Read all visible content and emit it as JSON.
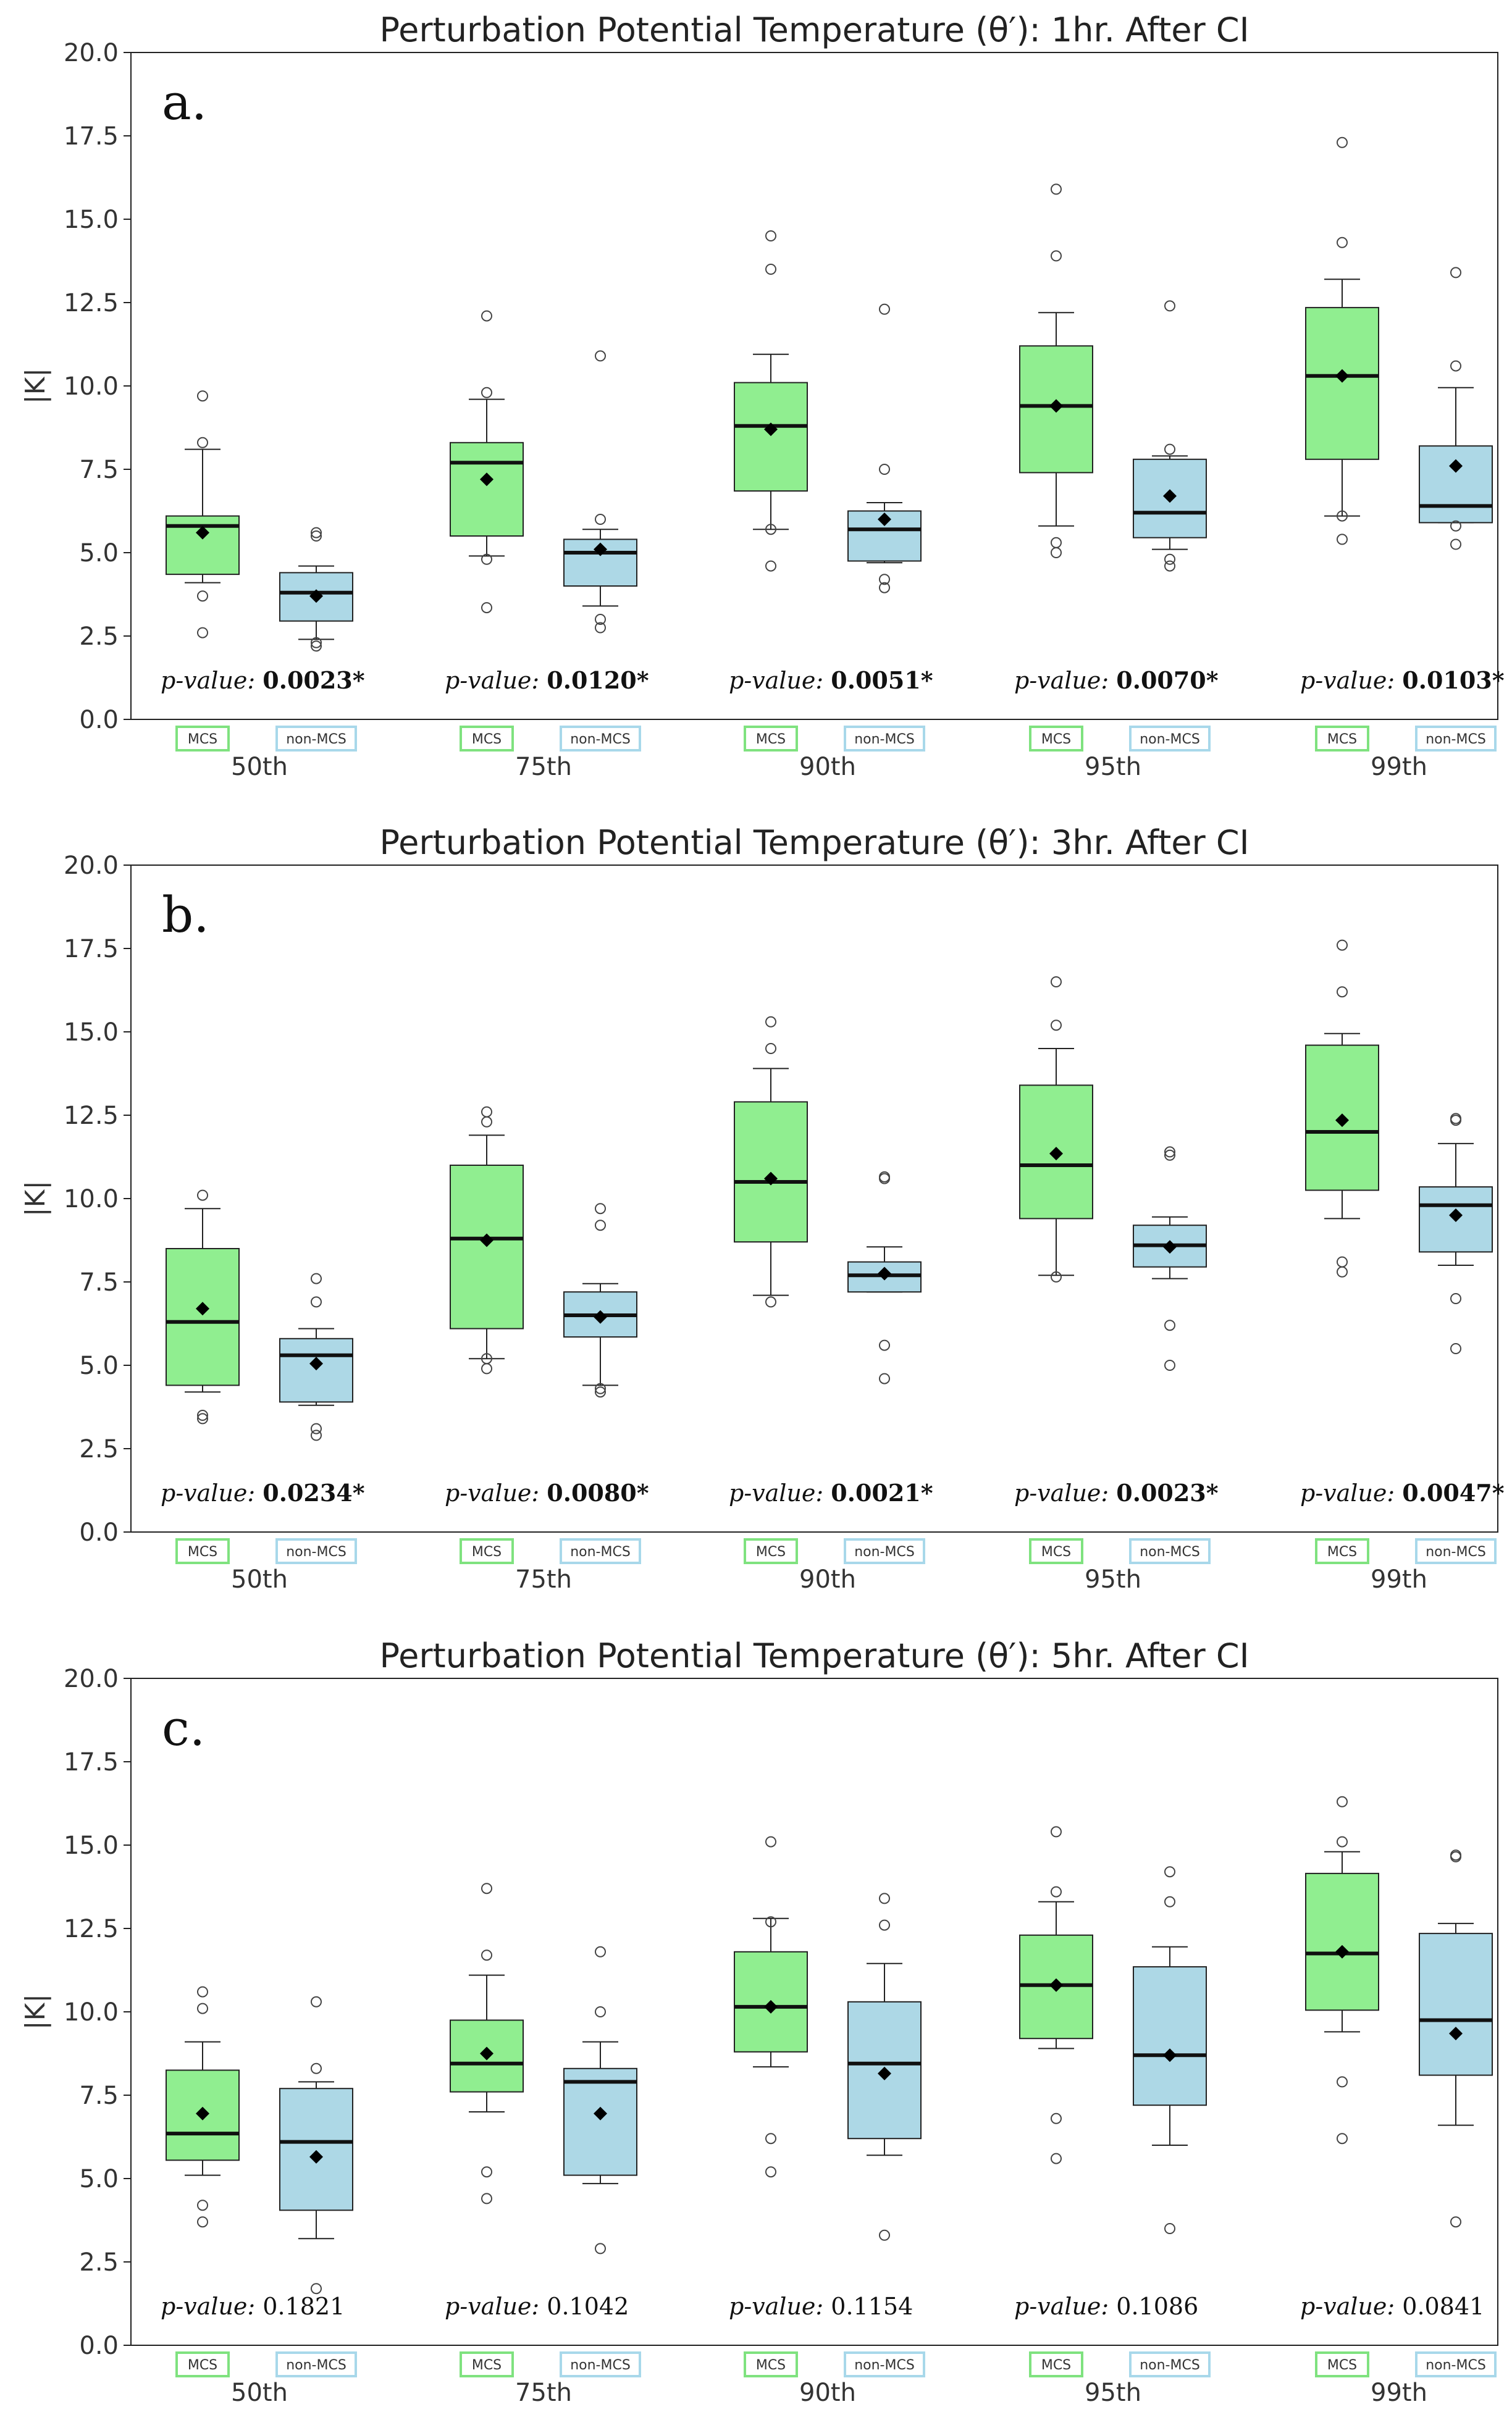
{
  "colors": {
    "mcs_fill": "#90ee90",
    "non_mcs_fill": "#add8e6",
    "mcs_legend": "#7fe27f",
    "non_mcs_legend": "#a8d8ea",
    "line": "#222222",
    "median": "#111111"
  },
  "legend_labels": {
    "mcs": "MCS",
    "non_mcs": "non-MCS"
  },
  "p_value_label": "p-value:",
  "chart_data": [
    {
      "type": "box",
      "panel_label": "a.",
      "title": "Perturbation Potential Temperature (θ′): 1hr. After CI",
      "ylabel": "|K|",
      "ylim": [
        0,
        20
      ],
      "yticks": [
        "0.0",
        "2.5",
        "5.0",
        "7.5",
        "10.0",
        "12.5",
        "15.0",
        "17.5",
        "20.0"
      ],
      "categories": [
        "50th",
        "75th",
        "90th",
        "95th",
        "99th"
      ],
      "p_values": [
        "0.0023*",
        "0.0120*",
        "0.0051*",
        "0.0070*",
        "0.0103*"
      ],
      "p_significant": [
        true,
        true,
        true,
        true,
        true
      ],
      "series": [
        {
          "name": "MCS",
          "boxes": [
            {
              "wl": 4.1,
              "q1": 4.35,
              "med": 5.8,
              "q3": 6.1,
              "wh": 8.1,
              "mean": 5.6,
              "fliers": [
                9.7,
                8.3,
                3.7,
                2.6
              ]
            },
            {
              "wl": 4.9,
              "q1": 5.5,
              "med": 7.7,
              "q3": 8.3,
              "wh": 9.6,
              "mean": 7.2,
              "fliers": [
                12.1,
                9.8,
                4.8,
                3.35
              ]
            },
            {
              "wl": 5.7,
              "q1": 6.85,
              "med": 8.8,
              "q3": 10.1,
              "wh": 10.95,
              "mean": 8.7,
              "fliers": [
                14.5,
                13.5,
                5.7,
                4.6
              ]
            },
            {
              "wl": 5.8,
              "q1": 7.4,
              "med": 9.4,
              "q3": 11.2,
              "wh": 12.2,
              "mean": 9.4,
              "fliers": [
                15.9,
                13.9,
                5.3,
                5.0
              ]
            },
            {
              "wl": 6.1,
              "q1": 7.8,
              "med": 10.3,
              "q3": 12.35,
              "wh": 13.2,
              "mean": 10.3,
              "fliers": [
                17.3,
                14.3,
                6.1,
                5.4
              ]
            }
          ]
        },
        {
          "name": "non-MCS",
          "boxes": [
            {
              "wl": 2.4,
              "q1": 2.95,
              "med": 3.8,
              "q3": 4.4,
              "wh": 4.6,
              "mean": 3.7,
              "fliers": [
                5.6,
                5.5,
                2.3,
                2.2
              ]
            },
            {
              "wl": 3.4,
              "q1": 4.0,
              "med": 5.0,
              "q3": 5.4,
              "wh": 5.7,
              "mean": 5.1,
              "fliers": [
                10.9,
                6.0,
                3.0,
                2.75
              ]
            },
            {
              "wl": 4.7,
              "q1": 4.75,
              "med": 5.7,
              "q3": 6.25,
              "wh": 6.5,
              "mean": 6.0,
              "fliers": [
                12.3,
                7.5,
                4.2,
                3.95
              ]
            },
            {
              "wl": 5.1,
              "q1": 5.45,
              "med": 6.2,
              "q3": 7.8,
              "wh": 7.9,
              "mean": 6.7,
              "fliers": [
                12.4,
                8.1,
                4.8,
                4.6
              ]
            },
            {
              "wl": 5.9,
              "q1": 5.9,
              "med": 6.4,
              "q3": 8.2,
              "wh": 9.95,
              "mean": 7.6,
              "fliers": [
                13.4,
                10.6,
                5.8,
                5.25
              ]
            }
          ]
        }
      ]
    },
    {
      "type": "box",
      "panel_label": "b.",
      "title": "Perturbation Potential Temperature (θ′): 3hr. After CI",
      "ylabel": "|K|",
      "ylim": [
        0,
        20
      ],
      "yticks": [
        "0.0",
        "2.5",
        "5.0",
        "7.5",
        "10.0",
        "12.5",
        "15.0",
        "17.5",
        "20.0"
      ],
      "categories": [
        "50th",
        "75th",
        "90th",
        "95th",
        "99th"
      ],
      "p_values": [
        "0.0234*",
        "0.0080*",
        "0.0021*",
        "0.0023*",
        "0.0047*"
      ],
      "p_significant": [
        true,
        true,
        true,
        true,
        true
      ],
      "series": [
        {
          "name": "MCS",
          "boxes": [
            {
              "wl": 4.2,
              "q1": 4.4,
              "med": 6.3,
              "q3": 8.5,
              "wh": 9.7,
              "mean": 6.7,
              "fliers": [
                10.1,
                3.5,
                3.4
              ]
            },
            {
              "wl": 5.2,
              "q1": 6.1,
              "med": 8.8,
              "q3": 11.0,
              "wh": 11.9,
              "mean": 8.75,
              "fliers": [
                12.6,
                12.3,
                5.2,
                4.9
              ]
            },
            {
              "wl": 7.1,
              "q1": 8.7,
              "med": 10.5,
              "q3": 12.9,
              "wh": 13.9,
              "mean": 10.6,
              "fliers": [
                15.3,
                14.5,
                6.9
              ]
            },
            {
              "wl": 7.7,
              "q1": 9.4,
              "med": 11.0,
              "q3": 13.4,
              "wh": 14.5,
              "mean": 11.35,
              "fliers": [
                16.5,
                15.2,
                7.65
              ]
            },
            {
              "wl": 9.4,
              "q1": 10.25,
              "med": 12.0,
              "q3": 14.6,
              "wh": 14.95,
              "mean": 12.35,
              "fliers": [
                17.6,
                16.2,
                8.1,
                7.8
              ]
            }
          ]
        },
        {
          "name": "non-MCS",
          "boxes": [
            {
              "wl": 3.8,
              "q1": 3.9,
              "med": 5.3,
              "q3": 5.8,
              "wh": 6.1,
              "mean": 5.05,
              "fliers": [
                7.6,
                6.9,
                3.1,
                2.9
              ]
            },
            {
              "wl": 4.4,
              "q1": 5.85,
              "med": 6.5,
              "q3": 7.2,
              "wh": 7.45,
              "mean": 6.45,
              "fliers": [
                9.7,
                9.2,
                4.3,
                4.2
              ]
            },
            {
              "wl": 7.2,
              "q1": 7.2,
              "med": 7.7,
              "q3": 8.1,
              "wh": 8.55,
              "mean": 7.75,
              "fliers": [
                10.65,
                10.6,
                5.6,
                4.6
              ]
            },
            {
              "wl": 7.6,
              "q1": 7.95,
              "med": 8.6,
              "q3": 9.2,
              "wh": 9.45,
              "mean": 8.55,
              "fliers": [
                11.4,
                11.3,
                6.2,
                5.0
              ]
            },
            {
              "wl": 8.0,
              "q1": 8.4,
              "med": 9.8,
              "q3": 10.35,
              "wh": 11.65,
              "mean": 9.5,
              "fliers": [
                12.4,
                12.35,
                7.0,
                5.5
              ]
            }
          ]
        }
      ]
    },
    {
      "type": "box",
      "panel_label": "c.",
      "title": "Perturbation Potential Temperature (θ′): 5hr. After CI",
      "ylabel": "|K|",
      "ylim": [
        0,
        20
      ],
      "yticks": [
        "0.0",
        "2.5",
        "5.0",
        "7.5",
        "10.0",
        "12.5",
        "15.0",
        "17.5",
        "20.0"
      ],
      "categories": [
        "50th",
        "75th",
        "90th",
        "95th",
        "99th"
      ],
      "p_values": [
        "0.1821",
        "0.1042",
        "0.1154",
        "0.1086",
        "0.0841"
      ],
      "p_significant": [
        false,
        false,
        false,
        false,
        false
      ],
      "series": [
        {
          "name": "MCS",
          "boxes": [
            {
              "wl": 5.1,
              "q1": 5.55,
              "med": 6.35,
              "q3": 8.25,
              "wh": 9.1,
              "mean": 6.95,
              "fliers": [
                10.6,
                10.1,
                4.2,
                3.7
              ]
            },
            {
              "wl": 7.0,
              "q1": 7.6,
              "med": 8.45,
              "q3": 9.75,
              "wh": 11.1,
              "mean": 8.75,
              "fliers": [
                13.7,
                11.7,
                5.2,
                4.4
              ]
            },
            {
              "wl": 8.35,
              "q1": 8.8,
              "med": 10.15,
              "q3": 11.8,
              "wh": 12.8,
              "mean": 10.15,
              "fliers": [
                15.1,
                12.7,
                6.2,
                5.2
              ]
            },
            {
              "wl": 8.9,
              "q1": 9.2,
              "med": 10.8,
              "q3": 12.3,
              "wh": 13.3,
              "mean": 10.8,
              "fliers": [
                15.4,
                13.6,
                6.8,
                5.6
              ]
            },
            {
              "wl": 9.4,
              "q1": 10.05,
              "med": 11.75,
              "q3": 14.15,
              "wh": 14.8,
              "mean": 11.8,
              "fliers": [
                16.3,
                15.1,
                7.9,
                6.2
              ]
            }
          ]
        },
        {
          "name": "non-MCS",
          "boxes": [
            {
              "wl": 3.2,
              "q1": 4.05,
              "med": 6.1,
              "q3": 7.7,
              "wh": 7.9,
              "mean": 5.65,
              "fliers": [
                10.3,
                8.3,
                1.7
              ]
            },
            {
              "wl": 4.85,
              "q1": 5.1,
              "med": 7.9,
              "q3": 8.3,
              "wh": 9.1,
              "mean": 6.95,
              "fliers": [
                11.8,
                10.0,
                2.9
              ]
            },
            {
              "wl": 5.7,
              "q1": 6.2,
              "med": 8.45,
              "q3": 10.3,
              "wh": 11.45,
              "mean": 8.15,
              "fliers": [
                13.4,
                12.6,
                3.3
              ]
            },
            {
              "wl": 6.0,
              "q1": 7.2,
              "med": 8.7,
              "q3": 11.35,
              "wh": 11.95,
              "mean": 8.7,
              "fliers": [
                14.2,
                13.3,
                3.5
              ]
            },
            {
              "wl": 6.6,
              "q1": 8.1,
              "med": 9.75,
              "q3": 12.35,
              "wh": 12.65,
              "mean": 9.35,
              "fliers": [
                14.7,
                14.65,
                3.7
              ]
            }
          ]
        }
      ]
    }
  ]
}
